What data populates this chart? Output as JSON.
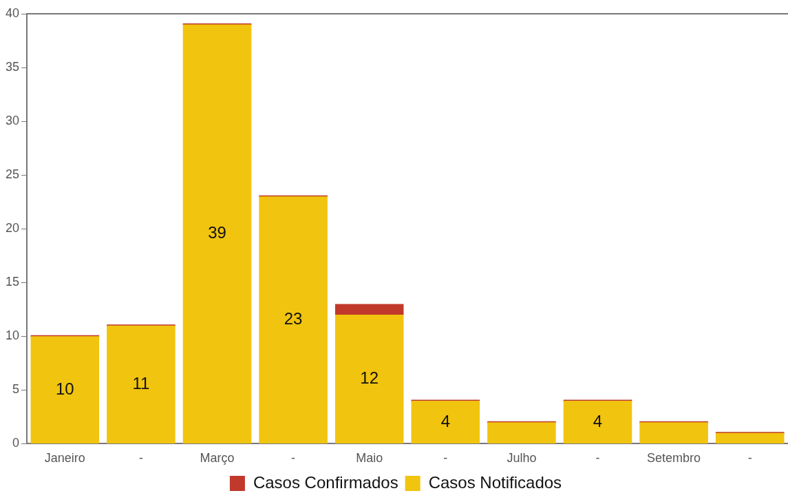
{
  "chart_data": {
    "type": "bar",
    "stacked": true,
    "categories": [
      "Janeiro",
      "-",
      "Março",
      "-",
      "Maio",
      "-",
      "Julho",
      "-",
      "Setembro",
      "-"
    ],
    "series": [
      {
        "name": "Casos Notificados",
        "color": "#f1c40f",
        "values": [
          10,
          11,
          39,
          23,
          12,
          4,
          2,
          4,
          2,
          1
        ],
        "value_labels": [
          "10",
          "11",
          "39",
          "23",
          "12",
          "4",
          null,
          "4",
          null,
          null
        ]
      },
      {
        "name": "Casos Confirmados",
        "color": "#c0392b",
        "values": [
          0,
          0,
          0,
          0,
          1,
          0,
          0,
          0,
          0,
          0
        ]
      }
    ],
    "ylim": [
      0,
      40
    ],
    "yticks": [
      0,
      5,
      10,
      15,
      20,
      25,
      30,
      35,
      40
    ],
    "grid": false,
    "legend": "bottom"
  }
}
